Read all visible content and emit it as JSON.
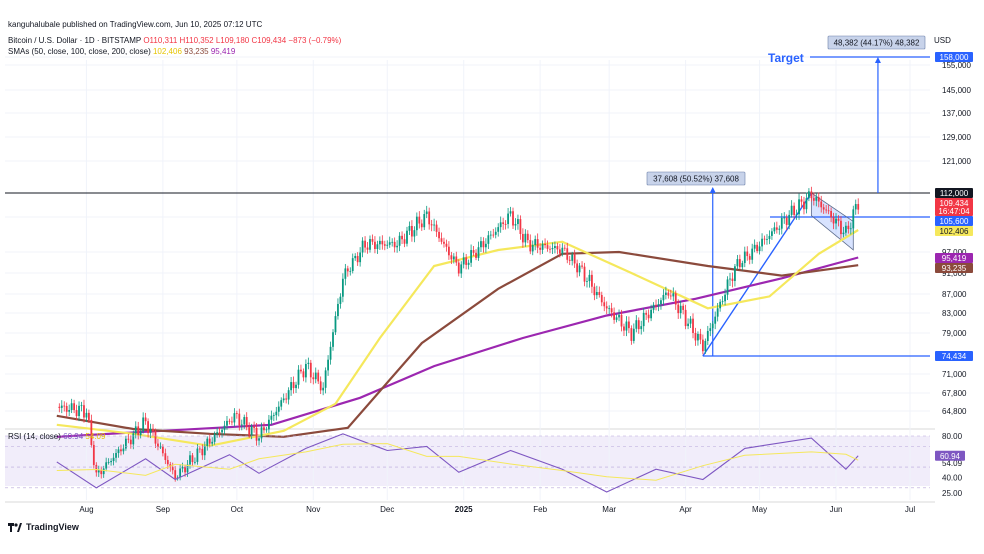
{
  "header": {
    "credit": "kanguhalubale published on TradingView.com, Jun 10, 2025 07:12 UTC",
    "symbol": "Bitcoin / U.S. Dollar · 1D · BITSTAMP",
    "ohlc": {
      "o": "O110,311",
      "h": "H110,352",
      "l": "L109,180",
      "c": "C109,434",
      "chg": "−873 (−0.79%)"
    },
    "sma_label": "SMAs (50, close, 100, close, 200, close)",
    "sma_values": [
      "102,406",
      "93,235",
      "95,419"
    ]
  },
  "rsi_label": {
    "name": "RSI (14, close)",
    "v1": "60.94",
    "v2": "54.09"
  },
  "brand": "TradingView",
  "chart_data": {
    "type": "line",
    "currency": "USD",
    "x_axis_labels": [
      "Aug",
      "Sep",
      "Oct",
      "Nov",
      "Dec",
      "2025",
      "Feb",
      "Mar",
      "Apr",
      "May",
      "Jun",
      "Jul"
    ],
    "y_ticks": [
      "158,000",
      "155,000",
      "145,000",
      "137,000",
      "129,000",
      "121,000",
      "112,000",
      "105,600",
      "97,000",
      "91,000",
      "87,000",
      "83,000",
      "79,000",
      "74,434",
      "71,000",
      "67,800",
      "64,800"
    ],
    "price_labels": [
      {
        "text": "158,000",
        "kind": "blue"
      },
      {
        "text": "112,000",
        "kind": "dark"
      },
      {
        "text": "109,434",
        "kind": "red"
      },
      {
        "text": "16:47:04",
        "kind": "red"
      },
      {
        "text": "105,600",
        "kind": "blue"
      },
      {
        "text": "102,406",
        "kind": "yellow"
      },
      {
        "text": "95,419",
        "kind": "purple"
      },
      {
        "text": "93,235",
        "kind": "brown"
      },
      {
        "text": "74,434",
        "kind": "blue"
      }
    ],
    "annotations": {
      "target_label": "Target",
      "target_box": "48,382 (44.17%) 48,382",
      "pole_box": "37,608 (50.52%) 37,608",
      "target_level": 158000,
      "resistance": 112000,
      "breakout_level": 105600,
      "low_level": 74434
    },
    "price": [
      {
        "d": "2024-07-20",
        "v": 65500
      },
      {
        "d": "2024-08-01",
        "v": 64800
      },
      {
        "d": "2024-08-05",
        "v": 54000
      },
      {
        "d": "2024-08-25",
        "v": 63000
      },
      {
        "d": "2024-09-06",
        "v": 53800
      },
      {
        "d": "2024-09-30",
        "v": 64000
      },
      {
        "d": "2024-10-10",
        "v": 60500
      },
      {
        "d": "2024-10-29",
        "v": 72500
      },
      {
        "d": "2024-11-05",
        "v": 68500
      },
      {
        "d": "2024-11-13",
        "v": 90000
      },
      {
        "d": "2024-11-22",
        "v": 98900
      },
      {
        "d": "2024-12-05",
        "v": 99000
      },
      {
        "d": "2024-12-17",
        "v": 106000
      },
      {
        "d": "2024-12-30",
        "v": 92500
      },
      {
        "d": "2025-01-20",
        "v": 106200
      },
      {
        "d": "2025-01-27",
        "v": 99000
      },
      {
        "d": "2025-02-10",
        "v": 97500
      },
      {
        "d": "2025-02-28",
        "v": 84000
      },
      {
        "d": "2025-03-10",
        "v": 79000
      },
      {
        "d": "2025-03-25",
        "v": 87500
      },
      {
        "d": "2025-04-08",
        "v": 76300
      },
      {
        "d": "2025-04-22",
        "v": 93500
      },
      {
        "d": "2025-05-08",
        "v": 103000
      },
      {
        "d": "2025-05-22",
        "v": 111500
      },
      {
        "d": "2025-06-05",
        "v": 101500
      },
      {
        "d": "2025-06-10",
        "v": 109434
      }
    ],
    "sma50": [
      {
        "d": "2024-07-20",
        "v": 62500
      },
      {
        "d": "2024-08-20",
        "v": 61000
      },
      {
        "d": "2024-09-20",
        "v": 59000
      },
      {
        "d": "2024-10-20",
        "v": 61500
      },
      {
        "d": "2024-11-10",
        "v": 66000
      },
      {
        "d": "2024-11-28",
        "v": 78000
      },
      {
        "d": "2024-12-20",
        "v": 93000
      },
      {
        "d": "2025-01-15",
        "v": 97500
      },
      {
        "d": "2025-02-10",
        "v": 99500
      },
      {
        "d": "2025-03-10",
        "v": 91000
      },
      {
        "d": "2025-04-10",
        "v": 84000
      },
      {
        "d": "2025-05-05",
        "v": 86500
      },
      {
        "d": "2025-05-25",
        "v": 96500
      },
      {
        "d": "2025-06-10",
        "v": 102406
      }
    ],
    "sma100": [
      {
        "d": "2024-07-20",
        "v": 64000
      },
      {
        "d": "2024-08-20",
        "v": 61800
      },
      {
        "d": "2024-09-20",
        "v": 61000
      },
      {
        "d": "2024-10-20",
        "v": 60500
      },
      {
        "d": "2024-11-15",
        "v": 62000
      },
      {
        "d": "2024-12-15",
        "v": 77000
      },
      {
        "d": "2025-01-15",
        "v": 88000
      },
      {
        "d": "2025-02-10",
        "v": 96500
      },
      {
        "d": "2025-03-05",
        "v": 97000
      },
      {
        "d": "2025-04-10",
        "v": 93000
      },
      {
        "d": "2025-05-10",
        "v": 90500
      },
      {
        "d": "2025-06-10",
        "v": 93235
      }
    ],
    "sma200": [
      {
        "d": "2024-07-20",
        "v": 60500
      },
      {
        "d": "2024-09-01",
        "v": 61500
      },
      {
        "d": "2024-10-15",
        "v": 62500
      },
      {
        "d": "2024-11-20",
        "v": 67000
      },
      {
        "d": "2024-12-20",
        "v": 72500
      },
      {
        "d": "2025-01-25",
        "v": 78000
      },
      {
        "d": "2025-02-28",
        "v": 82500
      },
      {
        "d": "2025-04-05",
        "v": 86000
      },
      {
        "d": "2025-05-10",
        "v": 90000
      },
      {
        "d": "2025-06-10",
        "v": 95419
      }
    ],
    "rsi": {
      "ticks": [
        "80.00",
        "54.09",
        "40.00",
        "25.00"
      ],
      "current": "60.94",
      "points": [
        {
          "d": "2024-07-20",
          "v": 55
        },
        {
          "d": "2024-08-05",
          "v": 30
        },
        {
          "d": "2024-08-25",
          "v": 58
        },
        {
          "d": "2024-09-06",
          "v": 38
        },
        {
          "d": "2024-09-28",
          "v": 62
        },
        {
          "d": "2024-10-10",
          "v": 44
        },
        {
          "d": "2024-10-29",
          "v": 68
        },
        {
          "d": "2024-11-13",
          "v": 82
        },
        {
          "d": "2024-12-01",
          "v": 66
        },
        {
          "d": "2024-12-17",
          "v": 70
        },
        {
          "d": "2024-12-30",
          "v": 45
        },
        {
          "d": "2025-01-20",
          "v": 66
        },
        {
          "d": "2025-02-10",
          "v": 48
        },
        {
          "d": "2025-02-28",
          "v": 26
        },
        {
          "d": "2025-03-20",
          "v": 48
        },
        {
          "d": "2025-04-08",
          "v": 38
        },
        {
          "d": "2025-04-25",
          "v": 68
        },
        {
          "d": "2025-05-22",
          "v": 78
        },
        {
          "d": "2025-06-05",
          "v": 48
        },
        {
          "d": "2025-06-10",
          "v": 60.94
        }
      ]
    }
  }
}
